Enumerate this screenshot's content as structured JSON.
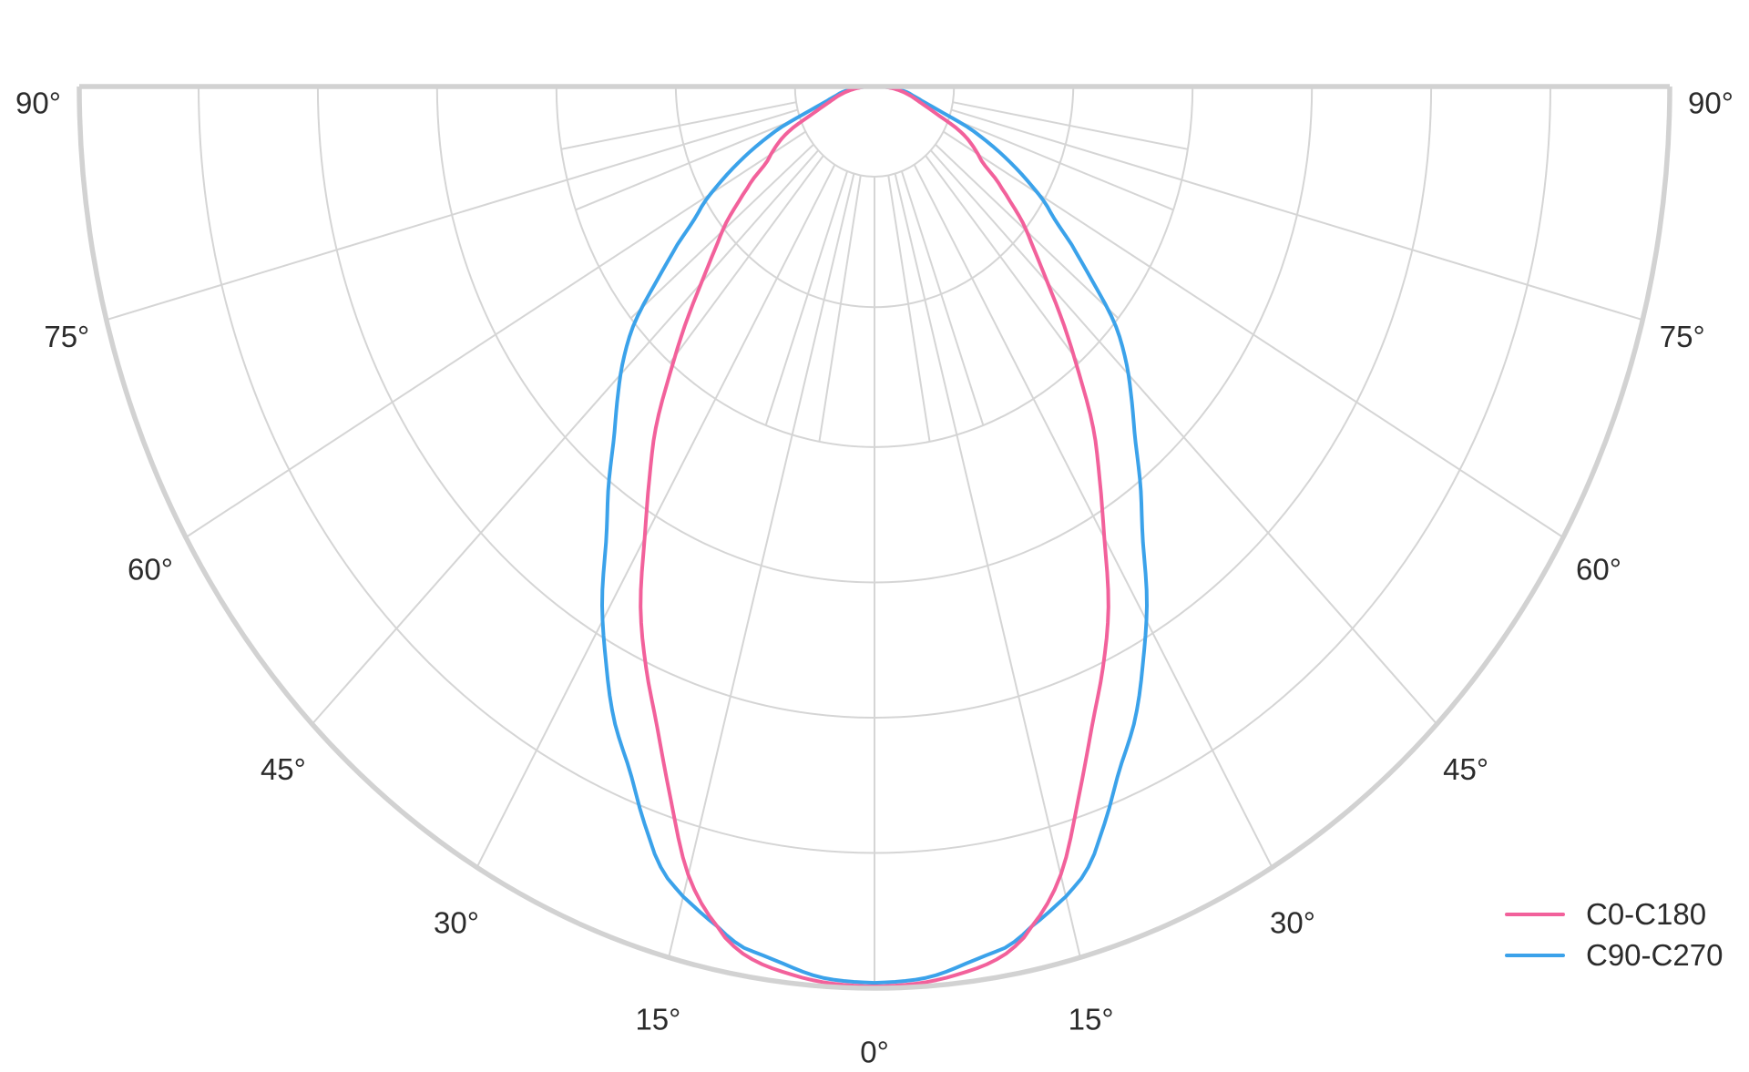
{
  "text_color": "#2b2b2b",
  "background_color": "#ffffff",
  "chart_data": {
    "type": "polar",
    "variant": "photometric-luminous-intensity-distribution",
    "title": "",
    "angular_unit": "deg",
    "angle_range_deg": [
      -90,
      90
    ],
    "angle_zero_position": "bottom",
    "angle_ticks": [
      {
        "deg": 0,
        "label": "0°"
      },
      {
        "deg": 15,
        "label": "15°"
      },
      {
        "deg": 30,
        "label": "30°"
      },
      {
        "deg": 45,
        "label": "45°"
      },
      {
        "deg": 60,
        "label": "60°"
      },
      {
        "deg": 75,
        "label": "75°"
      },
      {
        "deg": 90,
        "label": "90°"
      }
    ],
    "grid": {
      "ring_fractions": [
        0.1,
        0.25,
        0.4,
        0.55,
        0.7,
        0.85,
        1.0
      ],
      "major_spoke_step_deg": 15,
      "minor_spoke_step_deg": 10,
      "minor_spoke_span_fractions": [
        0.1,
        0.4
      ],
      "grid_color": "#d5d5d5",
      "outline_color": "#d2d2d2"
    },
    "r_axis": {
      "min": 0,
      "max": 1.0,
      "tick_labels_visible": false
    },
    "legend_position": "bottom-right",
    "series": [
      {
        "name": "C0-C180",
        "color": "#f2619b",
        "points_deg_rnorm": [
          [
            0,
            0.998
          ],
          [
            4,
            0.995
          ],
          [
            8,
            0.985
          ],
          [
            10,
            0.974
          ],
          [
            12,
            0.952
          ],
          [
            15,
            0.905
          ],
          [
            18,
            0.83
          ],
          [
            21,
            0.762
          ],
          [
            24,
            0.706
          ],
          [
            27,
            0.648
          ],
          [
            30,
            0.578
          ],
          [
            33,
            0.52
          ],
          [
            36,
            0.468
          ],
          [
            39,
            0.408
          ],
          [
            42,
            0.356
          ],
          [
            45,
            0.308
          ],
          [
            48,
            0.27
          ],
          [
            51,
            0.24
          ],
          [
            54,
            0.205
          ],
          [
            56,
            0.185
          ],
          [
            58,
            0.162
          ],
          [
            59,
            0.155
          ],
          [
            62,
            0.14
          ],
          [
            64,
            0.128
          ],
          [
            66,
            0.112
          ],
          [
            68,
            0.09
          ],
          [
            70,
            0.075
          ],
          [
            73,
            0.06
          ],
          [
            76,
            0.05
          ],
          [
            80,
            0.038
          ],
          [
            84,
            0.026
          ],
          [
            87,
            0.016
          ],
          [
            90,
            0.0075
          ]
        ]
      },
      {
        "name": "C90-C270",
        "color": "#3ba2ea",
        "points_deg_rnorm": [
          [
            0,
            0.994
          ],
          [
            4,
            0.99
          ],
          [
            8,
            0.975
          ],
          [
            10,
            0.968
          ],
          [
            12,
            0.952
          ],
          [
            15,
            0.93
          ],
          [
            17,
            0.91
          ],
          [
            19,
            0.875
          ],
          [
            22,
            0.82
          ],
          [
            25,
            0.775
          ],
          [
            28,
            0.72
          ],
          [
            31,
            0.665
          ],
          [
            34,
            0.603
          ],
          [
            37,
            0.556
          ],
          [
            40,
            0.51
          ],
          [
            43,
            0.474
          ],
          [
            46,
            0.44
          ],
          [
            49,
            0.4
          ],
          [
            52,
            0.345
          ],
          [
            55,
            0.3
          ],
          [
            57,
            0.27
          ],
          [
            59,
            0.25
          ],
          [
            61,
            0.225
          ],
          [
            63,
            0.2
          ],
          [
            65,
            0.175
          ],
          [
            67,
            0.15
          ],
          [
            69,
            0.125
          ],
          [
            71,
            0.095
          ],
          [
            73,
            0.075
          ],
          [
            75,
            0.062
          ],
          [
            78,
            0.05
          ],
          [
            81,
            0.042
          ],
          [
            84,
            0.03
          ],
          [
            87,
            0.017
          ],
          [
            90,
            0.009
          ]
        ]
      }
    ]
  },
  "legend": {
    "entries": [
      {
        "label": "C0-C180",
        "color": "#f2619b"
      },
      {
        "label": "C90-C270",
        "color": "#3ba2ea"
      }
    ]
  }
}
